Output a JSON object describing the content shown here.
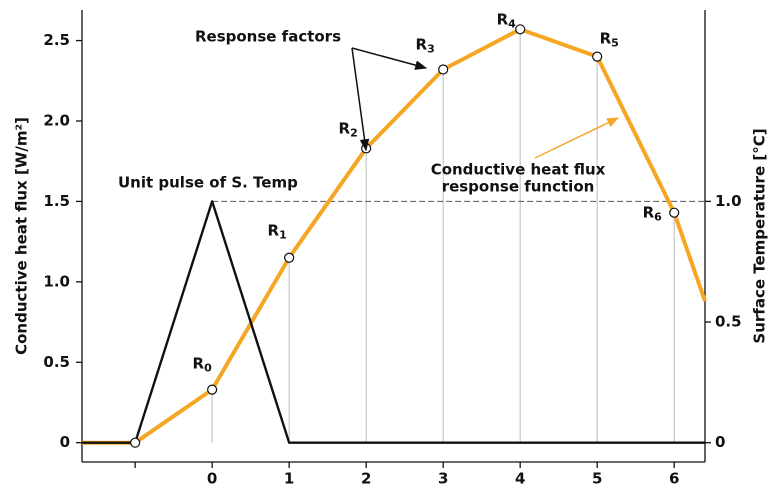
{
  "chart_data": {
    "type": "line",
    "y_label": "Conductive heat flux [W/m²]",
    "y2_label": "Surface Temperature [°C]",
    "xlim": [
      -1.69,
      6.4
    ],
    "xticks": [
      {
        "value": -1,
        "label": null
      },
      0,
      1,
      2,
      3,
      4,
      5,
      6
    ],
    "ylim": [
      -0.12,
      2.69
    ],
    "yticks": [
      0,
      0.5,
      {
        "value": 1,
        "label": "1.0"
      },
      1.5,
      {
        "value": 2,
        "label": "2.0"
      },
      2.5
    ],
    "y2lim": [
      -0.08,
      1.793
    ],
    "y2ticks": [
      0,
      0.5,
      {
        "value": 1,
        "label": "1.0"
      }
    ],
    "series": [
      {
        "name": "Conductive heat flux response function",
        "color": "#f5a623",
        "x": [
          -1.69,
          -1,
          0,
          1,
          2,
          3,
          4,
          5,
          6,
          6.4
        ],
        "values": [
          0,
          0,
          0.33,
          1.15,
          1.83,
          2.32,
          2.57,
          2.4,
          1.43,
          0.88
        ],
        "markers": [
          false,
          true,
          true,
          true,
          true,
          true,
          true,
          true,
          true,
          false
        ]
      },
      {
        "name": "Unit pulse of S. Temp",
        "color": "#111111",
        "axis": "y2",
        "x": [
          -1.69,
          -1,
          0,
          1,
          6.4
        ],
        "values": [
          0,
          0,
          1,
          0,
          0
        ]
      }
    ],
    "point_labels": [
      {
        "text": "R",
        "sub": "0",
        "x": 0
      },
      {
        "text": "R",
        "sub": "1",
        "x": 1
      },
      {
        "text": "R",
        "sub": "2",
        "x": 2
      },
      {
        "text": "R",
        "sub": "3",
        "x": 3
      },
      {
        "text": "R",
        "sub": "4",
        "x": 4
      },
      {
        "text": "R",
        "sub": "5",
        "x": 5
      },
      {
        "text": "R",
        "sub": "6",
        "x": 6
      }
    ],
    "reference_line": {
      "axis": "y2",
      "value": 1,
      "x_from": 0
    },
    "annotations": {
      "response_factors": "Response factors",
      "unit_pulse": "Unit pulse of S. Temp",
      "response_function": [
        "Conductive heat flux",
        "response function"
      ]
    }
  }
}
